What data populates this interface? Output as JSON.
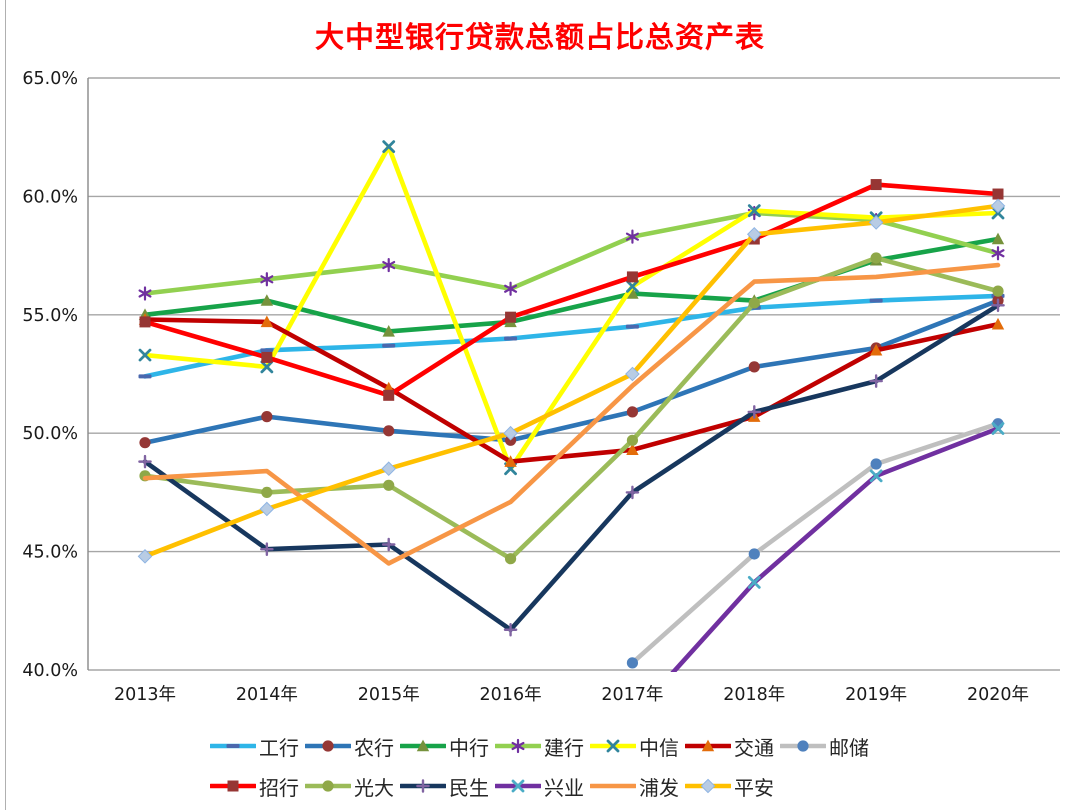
{
  "title": "大中型银行贷款总额占比总资产表",
  "title_color": "#FF0000",
  "chart_data": {
    "type": "line",
    "title": "大中型银行贷款总额占比总资产表",
    "categories": [
      "2013年",
      "2014年",
      "2015年",
      "2016年",
      "2017年",
      "2018年",
      "2019年",
      "2020年"
    ],
    "y_axis": {
      "min": 40,
      "max": 65,
      "step": 5,
      "tick_labels": [
        "65.0%",
        "60.0%",
        "55.0%",
        "50.0%",
        "45.0%",
        "40.0%"
      ],
      "format": "percent_one_decimal"
    },
    "grid": true,
    "legend_position": "bottom",
    "legend_rows": [
      7,
      6
    ],
    "series": [
      {
        "name": "工行",
        "line_color": "#2EB5E8",
        "marker": "dash",
        "marker_color": "#4A68AE",
        "values": [
          52.4,
          53.5,
          53.7,
          54.0,
          54.5,
          55.3,
          55.6,
          55.8
        ]
      },
      {
        "name": "农行",
        "line_color": "#2E75B6",
        "marker": "circle",
        "marker_color": "#953735",
        "values": [
          49.6,
          50.7,
          50.1,
          49.7,
          50.9,
          52.8,
          53.6,
          55.6
        ]
      },
      {
        "name": "中行",
        "line_color": "#17A349",
        "marker": "triangle",
        "marker_color": "#76923C",
        "values": [
          55.0,
          55.6,
          54.3,
          54.7,
          55.9,
          55.6,
          57.3,
          58.2
        ]
      },
      {
        "name": "建行",
        "line_color": "#92D050",
        "marker": "asterisk",
        "marker_color": "#7030A0",
        "values": [
          55.9,
          56.5,
          57.1,
          56.1,
          58.3,
          59.3,
          59.0,
          57.6
        ]
      },
      {
        "name": "中信",
        "line_color": "#FFFF00",
        "marker": "x",
        "marker_color": "#31859C",
        "values": [
          53.3,
          52.8,
          62.1,
          48.5,
          56.2,
          59.4,
          59.1,
          59.3
        ]
      },
      {
        "name": "交通",
        "line_color": "#C00000",
        "marker": "triangle",
        "marker_color": "#E36C0A",
        "values": [
          54.8,
          54.7,
          51.9,
          48.8,
          49.3,
          50.7,
          53.5,
          54.6
        ]
      },
      {
        "name": "邮储",
        "line_color": "#BFBFBF",
        "marker": "circle",
        "marker_color": "#4F81BD",
        "values": [
          null,
          null,
          null,
          null,
          40.3,
          44.9,
          48.7,
          50.4
        ]
      },
      {
        "name": "招行",
        "line_color": "#FF0000",
        "marker": "square",
        "marker_color": "#963634",
        "values": [
          54.7,
          53.2,
          51.6,
          54.9,
          56.6,
          58.2,
          60.5,
          60.1
        ]
      },
      {
        "name": "光大",
        "line_color": "#9BBB59",
        "marker": "circle",
        "marker_color": "#8FA848",
        "values": [
          48.2,
          47.5,
          47.8,
          44.7,
          49.7,
          55.5,
          57.4,
          56.0
        ]
      },
      {
        "name": "民生",
        "line_color": "#17375E",
        "marker": "plus",
        "marker_color": "#8064A2",
        "values": [
          48.8,
          45.1,
          45.3,
          41.7,
          47.5,
          50.9,
          52.2,
          55.4
        ]
      },
      {
        "name": "兴业",
        "line_color": "#7030A0",
        "marker": "x",
        "marker_color": "#4BACC6",
        "values": [
          null,
          null,
          null,
          null,
          38.0,
          43.7,
          48.2,
          50.2
        ]
      },
      {
        "name": "浦发",
        "line_color": "#F79646",
        "marker": "none",
        "marker_color": "#F79646",
        "values": [
          48.1,
          48.4,
          44.5,
          47.1,
          52.0,
          56.4,
          56.6,
          57.1
        ]
      },
      {
        "name": "平安",
        "line_color": "#FFC000",
        "marker": "diamond",
        "marker_color": "#B8CCE4",
        "values": [
          44.8,
          46.8,
          48.5,
          50.0,
          52.5,
          58.4,
          58.9,
          59.6
        ]
      }
    ]
  }
}
